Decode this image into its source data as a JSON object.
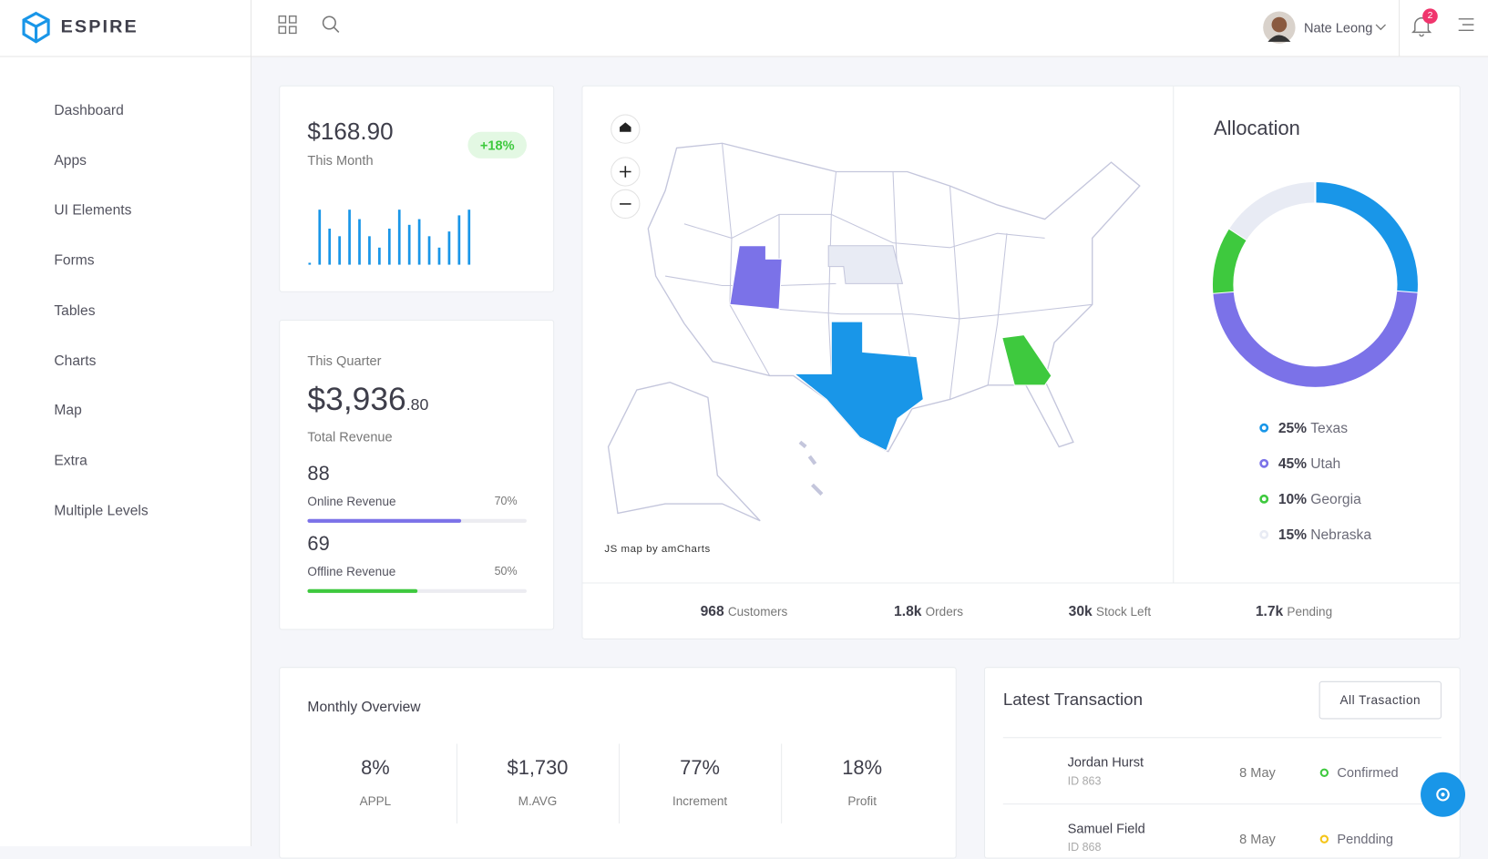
{
  "brand": "ESPIRE",
  "header": {
    "user": "Nate Leong",
    "notifications": "2"
  },
  "sidebar": [
    "Dashboard",
    "Apps",
    "UI Elements",
    "Forms",
    "Tables",
    "Charts",
    "Map",
    "Extra",
    "Multiple Levels"
  ],
  "month_card": {
    "amount": "$168.90",
    "label": "This Month",
    "change": "+18%"
  },
  "quarter_card": {
    "label": "This Quarter",
    "amount": "$3,936",
    "cents": ".80",
    "subtitle": "Total Revenue",
    "items": [
      {
        "value": "88",
        "label": "Online Revenue",
        "percent": 70,
        "percent_label": "70%",
        "color": "#7b72e8"
      },
      {
        "value": "69",
        "label": "Offline Revenue",
        "percent": 50,
        "percent_label": "50%",
        "color": "#3ec93e"
      }
    ]
  },
  "map": {
    "credit": "JS map by amCharts"
  },
  "stats": [
    {
      "value": "968",
      "label": "Customers"
    },
    {
      "value": "1.8k",
      "label": "Orders"
    },
    {
      "value": "30k",
      "label": "Stock Left"
    },
    {
      "value": "1.7k",
      "label": "Pending"
    }
  ],
  "chart_data": [
    {
      "type": "bar",
      "values": [
        2,
        58,
        38,
        30,
        58,
        48,
        30,
        18,
        38,
        58,
        42,
        48,
        30,
        18,
        35,
        52,
        58
      ],
      "color": "#1996e8"
    },
    {
      "type": "pie",
      "title": "Allocation",
      "categories": [
        "Texas",
        "Utah",
        "Georgia",
        "Nebraska"
      ],
      "values": [
        25,
        45,
        10,
        15
      ],
      "value_labels": [
        "25%",
        "45%",
        "10%",
        "15%"
      ],
      "colors": [
        "#1996e8",
        "#7b72e8",
        "#3ec93e",
        "#e8ebf4"
      ]
    }
  ],
  "monthly_overview": {
    "title": "Monthly Overview",
    "items": [
      {
        "value": "8%",
        "label": "APPL"
      },
      {
        "value": "$1,730",
        "label": "M.AVG"
      },
      {
        "value": "77%",
        "label": "Increment"
      },
      {
        "value": "18%",
        "label": "Profit"
      }
    ]
  },
  "transactions": {
    "title": "Latest Transaction",
    "button": "All Trasaction",
    "rows": [
      {
        "name": "Jordan Hurst",
        "id": "ID 863",
        "date": "8 May",
        "status": "Confirmed",
        "status_color": "#3ec93e"
      },
      {
        "name": "Samuel Field",
        "id": "ID 868",
        "date": "8 May",
        "status": "Pendding",
        "status_color": "#f5c518"
      }
    ]
  }
}
